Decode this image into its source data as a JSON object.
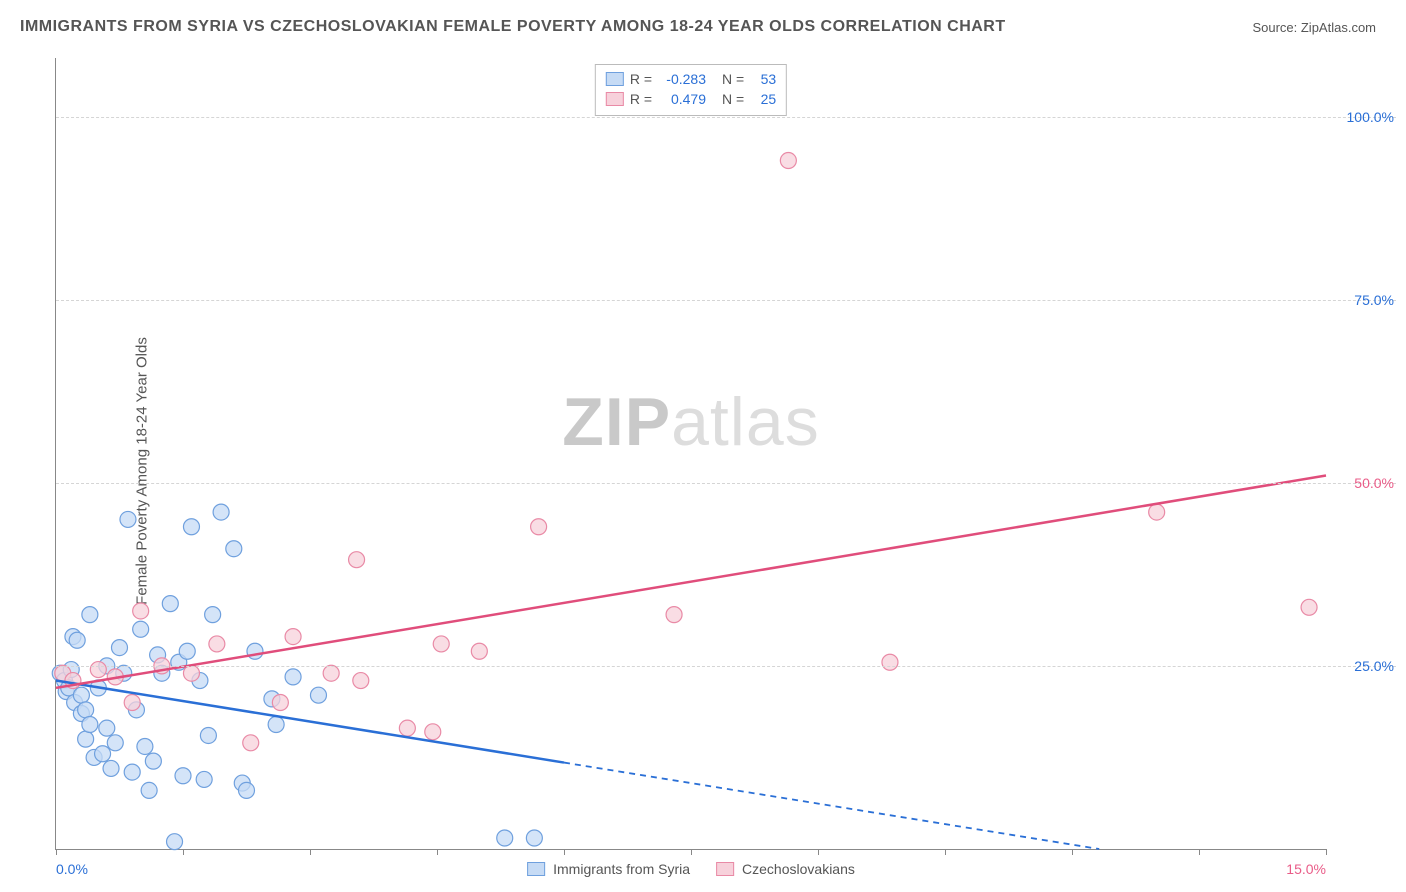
{
  "title": "IMMIGRANTS FROM SYRIA VS CZECHOSLOVAKIAN FEMALE POVERTY AMONG 18-24 YEAR OLDS CORRELATION CHART",
  "source_label": "Source: ZipAtlas.com",
  "watermark": {
    "part1": "ZIP",
    "part2": "atlas"
  },
  "chart": {
    "type": "scatter",
    "background_color": "#ffffff",
    "grid_color": "#d5d5d5",
    "axis_color": "#888888",
    "x": {
      "min": 0.0,
      "max": 15.0,
      "ticks": [
        0.0,
        1.5,
        3.0,
        4.5,
        6.0,
        7.5,
        9.0,
        10.5,
        12.0,
        13.5,
        15.0
      ],
      "visible_labels": [
        {
          "value": 0.0,
          "text": "0.0%",
          "color": "#2a6fd6"
        },
        {
          "value": 15.0,
          "text": "15.0%",
          "color": "#e95c88"
        }
      ]
    },
    "y": {
      "label": "Female Poverty Among 18-24 Year Olds",
      "label_fontsize": 15,
      "min": 0.0,
      "max": 108.0,
      "gridlines": [
        25.0,
        50.0,
        75.0,
        100.0
      ],
      "labels": [
        {
          "value": 25.0,
          "text": "25.0%",
          "color": "#2a6fd6"
        },
        {
          "value": 50.0,
          "text": "50.0%",
          "color": "#e95c88"
        },
        {
          "value": 75.0,
          "text": "75.0%",
          "color": "#2a6fd6"
        },
        {
          "value": 100.0,
          "text": "100.0%",
          "color": "#2a6fd6"
        }
      ]
    },
    "series": [
      {
        "id": "syria",
        "label": "Immigrants from Syria",
        "fill": "#c6dbf5",
        "stroke": "#6fa0de",
        "fill_opacity": 0.75,
        "marker_radius": 8,
        "stats": {
          "R": "-0.283",
          "N": "53"
        },
        "trend": {
          "stroke": "#2a6fd6",
          "width": 2.5,
          "y_at_x0": 23.0,
          "y_at_xmax": -5.0,
          "solid_until_x": 6.0,
          "dash_pattern": "6 5"
        },
        "points": [
          [
            0.05,
            24.0
          ],
          [
            0.1,
            23.0
          ],
          [
            0.12,
            21.5
          ],
          [
            0.15,
            22.0
          ],
          [
            0.18,
            24.5
          ],
          [
            0.2,
            29.0
          ],
          [
            0.22,
            20.0
          ],
          [
            0.25,
            28.5
          ],
          [
            0.3,
            21.0
          ],
          [
            0.3,
            18.5
          ],
          [
            0.35,
            19.0
          ],
          [
            0.35,
            15.0
          ],
          [
            0.4,
            17.0
          ],
          [
            0.4,
            32.0
          ],
          [
            0.45,
            12.5
          ],
          [
            0.5,
            22.0
          ],
          [
            0.55,
            13.0
          ],
          [
            0.6,
            16.5
          ],
          [
            0.6,
            25.0
          ],
          [
            0.65,
            11.0
          ],
          [
            0.7,
            14.5
          ],
          [
            0.75,
            27.5
          ],
          [
            0.8,
            24.0
          ],
          [
            0.85,
            45.0
          ],
          [
            0.9,
            10.5
          ],
          [
            0.95,
            19.0
          ],
          [
            1.0,
            30.0
          ],
          [
            1.05,
            14.0
          ],
          [
            1.1,
            8.0
          ],
          [
            1.15,
            12.0
          ],
          [
            1.2,
            26.5
          ],
          [
            1.25,
            24.0
          ],
          [
            1.35,
            33.5
          ],
          [
            1.4,
            1.0
          ],
          [
            1.45,
            25.5
          ],
          [
            1.5,
            10.0
          ],
          [
            1.55,
            27.0
          ],
          [
            1.6,
            44.0
          ],
          [
            1.7,
            23.0
          ],
          [
            1.75,
            9.5
          ],
          [
            1.8,
            15.5
          ],
          [
            1.85,
            32.0
          ],
          [
            1.95,
            46.0
          ],
          [
            2.1,
            41.0
          ],
          [
            2.2,
            9.0
          ],
          [
            2.25,
            8.0
          ],
          [
            2.35,
            27.0
          ],
          [
            2.55,
            20.5
          ],
          [
            2.6,
            17.0
          ],
          [
            2.8,
            23.5
          ],
          [
            3.1,
            21.0
          ],
          [
            5.3,
            1.5
          ],
          [
            5.65,
            1.5
          ]
        ]
      },
      {
        "id": "czech",
        "label": "Czechoslovakians",
        "fill": "#f7d1db",
        "stroke": "#e98aa6",
        "fill_opacity": 0.75,
        "marker_radius": 8,
        "stats": {
          "R": "0.479",
          "N": "25"
        },
        "trend": {
          "stroke": "#e04d7b",
          "width": 2.5,
          "y_at_x0": 22.0,
          "y_at_xmax": 51.0,
          "solid_until_x": 15.0,
          "dash_pattern": ""
        },
        "points": [
          [
            0.08,
            24.0
          ],
          [
            0.2,
            23.0
          ],
          [
            0.5,
            24.5
          ],
          [
            0.7,
            23.5
          ],
          [
            0.9,
            20.0
          ],
          [
            1.0,
            32.5
          ],
          [
            1.25,
            25.0
          ],
          [
            1.6,
            24.0
          ],
          [
            1.9,
            28.0
          ],
          [
            2.3,
            14.5
          ],
          [
            2.65,
            20.0
          ],
          [
            2.8,
            29.0
          ],
          [
            3.25,
            24.0
          ],
          [
            3.55,
            39.5
          ],
          [
            3.6,
            23.0
          ],
          [
            4.15,
            16.5
          ],
          [
            4.45,
            16.0
          ],
          [
            4.55,
            28.0
          ],
          [
            5.0,
            27.0
          ],
          [
            5.7,
            44.0
          ],
          [
            7.3,
            32.0
          ],
          [
            8.65,
            94.0
          ],
          [
            9.85,
            25.5
          ],
          [
            13.0,
            46.0
          ],
          [
            14.8,
            33.0
          ]
        ]
      }
    ],
    "legend_bottom": [
      {
        "swatch_fill": "#c6dbf5",
        "swatch_stroke": "#6fa0de",
        "text": "Immigrants from Syria"
      },
      {
        "swatch_fill": "#f7d1db",
        "swatch_stroke": "#e98aa6",
        "text": "Czechoslovakians"
      }
    ]
  }
}
